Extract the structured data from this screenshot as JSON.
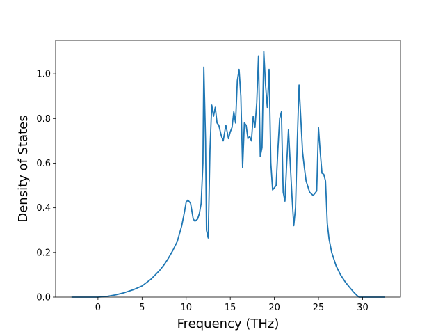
{
  "chart_data": {
    "type": "line",
    "title": "",
    "xlabel": "Frequency (THz)",
    "ylabel": "Density of States",
    "xlim": [
      -4.8,
      34.3
    ],
    "ylim": [
      0.0,
      1.15
    ],
    "xticks": [
      0,
      5,
      10,
      15,
      20,
      25,
      30
    ],
    "xtick_labels": [
      "0",
      "5",
      "10",
      "15",
      "20",
      "25",
      "30"
    ],
    "yticks": [
      0.0,
      0.2,
      0.4,
      0.6,
      0.8,
      1.0
    ],
    "ytick_labels": [
      "0.0",
      "0.2",
      "0.4",
      "0.6",
      "0.8",
      "1.0"
    ],
    "grid": false,
    "legend": "none",
    "series": [
      {
        "color": "#1f77b4",
        "x": [
          -3.0,
          0.0,
          1.0,
          2.0,
          3.0,
          4.0,
          5.0,
          6.0,
          7.0,
          7.5,
          8.0,
          8.5,
          9.0,
          9.5,
          9.8,
          10.0,
          10.2,
          10.5,
          10.8,
          11.0,
          11.3,
          11.5,
          11.7,
          11.9,
          12.0,
          12.2,
          12.3,
          12.5,
          12.7,
          12.9,
          13.1,
          13.3,
          13.5,
          13.7,
          14.0,
          14.2,
          14.5,
          14.8,
          15.0,
          15.2,
          15.4,
          15.6,
          15.8,
          16.0,
          16.2,
          16.4,
          16.6,
          16.8,
          17.0,
          17.2,
          17.4,
          17.6,
          17.8,
          18.0,
          18.2,
          18.4,
          18.6,
          18.8,
          19.0,
          19.2,
          19.4,
          19.6,
          19.8,
          20.0,
          20.2,
          20.4,
          20.6,
          20.8,
          21.0,
          21.2,
          21.4,
          21.6,
          21.8,
          22.0,
          22.2,
          22.4,
          22.6,
          22.8,
          23.0,
          23.2,
          23.4,
          23.6,
          24.0,
          24.4,
          24.8,
          25.0,
          25.2,
          25.4,
          25.6,
          25.8,
          26.0,
          26.2,
          26.5,
          27.0,
          27.5,
          28.0,
          28.5,
          29.0,
          29.3,
          29.6,
          30.0,
          32.5
        ],
        "y": [
          0.0,
          0.0,
          0.003,
          0.01,
          0.02,
          0.033,
          0.05,
          0.08,
          0.12,
          0.145,
          0.175,
          0.21,
          0.25,
          0.32,
          0.38,
          0.425,
          0.435,
          0.42,
          0.35,
          0.34,
          0.35,
          0.375,
          0.42,
          0.6,
          1.03,
          0.7,
          0.3,
          0.265,
          0.66,
          0.86,
          0.81,
          0.85,
          0.78,
          0.77,
          0.72,
          0.7,
          0.77,
          0.71,
          0.74,
          0.76,
          0.83,
          0.78,
          0.97,
          1.02,
          0.9,
          0.58,
          0.78,
          0.77,
          0.71,
          0.72,
          0.7,
          0.81,
          0.76,
          0.87,
          1.08,
          0.63,
          0.67,
          1.1,
          0.95,
          0.85,
          1.02,
          0.6,
          0.48,
          0.49,
          0.5,
          0.66,
          0.8,
          0.83,
          0.47,
          0.43,
          0.6,
          0.75,
          0.6,
          0.45,
          0.32,
          0.4,
          0.7,
          0.95,
          0.8,
          0.65,
          0.58,
          0.52,
          0.47,
          0.455,
          0.475,
          0.76,
          0.65,
          0.555,
          0.55,
          0.52,
          0.33,
          0.26,
          0.2,
          0.14,
          0.1,
          0.07,
          0.045,
          0.022,
          0.01,
          0.0,
          0.0,
          0.0
        ]
      }
    ]
  }
}
